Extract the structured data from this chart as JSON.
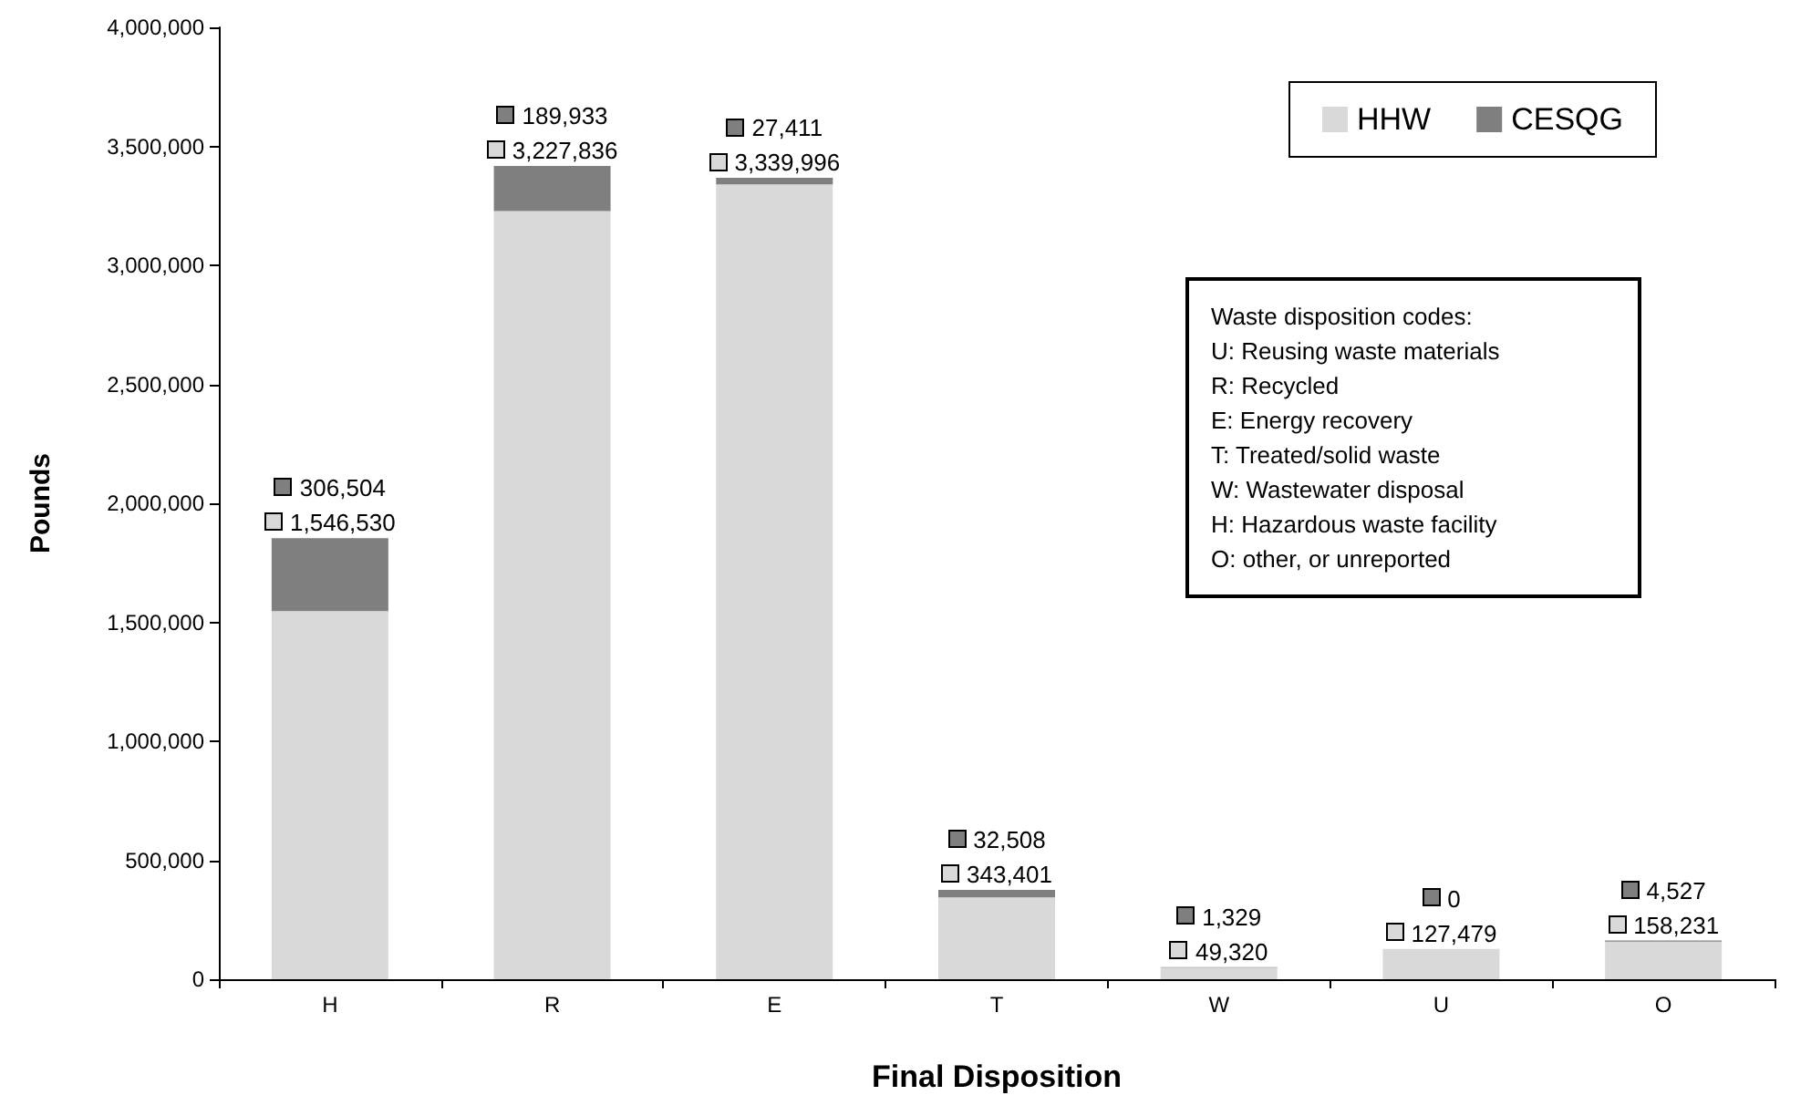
{
  "chart_data": {
    "type": "bar",
    "stacked": true,
    "xlabel": "Final Disposition",
    "ylabel": "Pounds",
    "categories": [
      "H",
      "R",
      "E",
      "T",
      "W",
      "U",
      "O"
    ],
    "series": [
      {
        "name": "HHW",
        "color": "#d9d9d9",
        "values": [
          1546530,
          3227836,
          3339996,
          343401,
          49320,
          127479,
          158231
        ],
        "value_labels": [
          "1,546,530",
          "3,227,836",
          "3,339,996",
          "343,401",
          "49,320",
          "127,479",
          "158,231"
        ]
      },
      {
        "name": "CESQG",
        "color": "#7f7f7f",
        "values": [
          306504,
          189933,
          27411,
          32508,
          1329,
          0,
          4527
        ],
        "value_labels": [
          "306,504",
          "189,933",
          "27,411",
          "32,508",
          "1,329",
          "0",
          "4,527"
        ]
      }
    ],
    "ylim": [
      0,
      4000000
    ],
    "yticks": [
      {
        "value": 0,
        "label": "0"
      },
      {
        "value": 500000,
        "label": "500,000"
      },
      {
        "value": 1000000,
        "label": "1,000,000"
      },
      {
        "value": 1500000,
        "label": "1,500,000"
      },
      {
        "value": 2000000,
        "label": "2,000,000"
      },
      {
        "value": 2500000,
        "label": "2,500,000"
      },
      {
        "value": 3000000,
        "label": "3,000,000"
      },
      {
        "value": 3500000,
        "label": "3,500,000"
      },
      {
        "value": 4000000,
        "label": "4,000,000"
      }
    ],
    "legend": "top right",
    "annotations": [
      "Waste disposition codes:",
      "U: Reusing waste materials",
      "R: Recycled",
      "E: Energy recovery",
      "T: Treated/solid waste",
      "W: Wastewater disposal",
      "H: Hazardous waste facility",
      "O: other, or unreported"
    ]
  }
}
